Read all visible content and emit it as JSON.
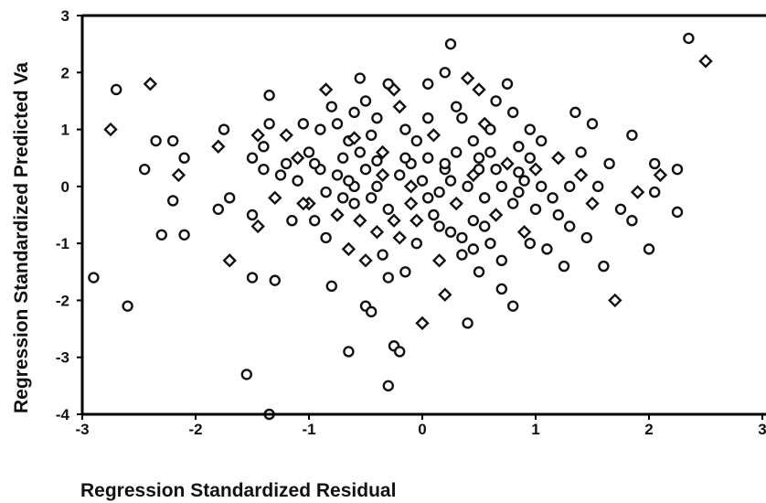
{
  "chart_data": {
    "type": "scatter",
    "title": "",
    "xlabel": "Regression Standardized Residual",
    "ylabel": "Regression Standardized Predicted Va",
    "xlim": [
      -3,
      3
    ],
    "ylim": [
      -4,
      3
    ],
    "x_ticks": [
      "-3",
      "-2",
      "-1",
      "0",
      "1",
      "2",
      "3"
    ],
    "y_ticks": [
      "3",
      "2",
      "1",
      "0",
      "-1",
      "-2",
      "-3",
      "-4"
    ],
    "grid": false,
    "colors": {
      "marker": "#111111",
      "axis": "#000000",
      "background": "#ffffff"
    },
    "series": [
      {
        "points": [
          [
            -2.9,
            -1.6
          ],
          [
            -2.75,
            1.0
          ],
          [
            -2.7,
            1.7
          ],
          [
            -2.6,
            -2.1
          ],
          [
            -2.45,
            0.3
          ],
          [
            -2.4,
            1.8
          ],
          [
            -2.35,
            0.8
          ],
          [
            -2.2,
            0.8
          ],
          [
            -2.2,
            -0.25
          ],
          [
            -2.15,
            0.2
          ],
          [
            -2.1,
            0.5
          ],
          [
            -2.1,
            -0.85
          ],
          [
            -2.3,
            -0.85
          ],
          [
            -1.8,
            0.7
          ],
          [
            -1.75,
            1.0
          ],
          [
            -1.7,
            -0.2
          ],
          [
            -1.8,
            -0.4
          ],
          [
            -1.7,
            -1.3
          ],
          [
            -1.55,
            -3.3
          ],
          [
            -1.5,
            -1.6
          ],
          [
            -1.5,
            0.5
          ],
          [
            -1.45,
            0.9
          ],
          [
            -1.4,
            0.7
          ],
          [
            -1.35,
            1.1
          ],
          [
            -1.35,
            1.6
          ],
          [
            -1.3,
            -0.2
          ],
          [
            -1.3,
            -1.65
          ],
          [
            -1.35,
            -4.0
          ],
          [
            -1.5,
            -0.5
          ],
          [
            -1.45,
            -0.7
          ],
          [
            -1.25,
            0.2
          ],
          [
            -1.2,
            0.4
          ],
          [
            -1.15,
            -0.6
          ],
          [
            -1.1,
            0.5
          ],
          [
            -1.1,
            0.1
          ],
          [
            -1.05,
            1.1
          ],
          [
            -1.0,
            0.6
          ],
          [
            -1.0,
            -0.3
          ],
          [
            -0.95,
            -0.6
          ],
          [
            -0.9,
            0.3
          ],
          [
            -0.9,
            1.0
          ],
          [
            -0.85,
            1.7
          ],
          [
            -0.8,
            1.4
          ],
          [
            -0.8,
            -1.75
          ],
          [
            -0.75,
            0.2
          ],
          [
            -0.75,
            -0.5
          ],
          [
            -0.7,
            0.5
          ],
          [
            -0.7,
            -0.2
          ],
          [
            -0.65,
            0.8
          ],
          [
            -0.65,
            -1.1
          ],
          [
            -0.65,
            -2.9
          ],
          [
            -0.6,
            1.3
          ],
          [
            -0.6,
            0.0
          ],
          [
            -0.55,
            -0.6
          ],
          [
            -0.55,
            1.9
          ],
          [
            -0.5,
            1.5
          ],
          [
            -0.5,
            0.3
          ],
          [
            -0.5,
            -1.3
          ],
          [
            -0.5,
            -2.1
          ],
          [
            -0.45,
            -2.2
          ],
          [
            -0.45,
            0.9
          ],
          [
            -0.4,
            -0.8
          ],
          [
            -0.4,
            0.0
          ],
          [
            -0.4,
            1.2
          ],
          [
            -0.35,
            -1.2
          ],
          [
            -0.35,
            0.6
          ],
          [
            -0.3,
            1.8
          ],
          [
            -0.3,
            -0.4
          ],
          [
            -0.3,
            -3.5
          ],
          [
            -0.25,
            1.7
          ],
          [
            -0.25,
            -2.8
          ],
          [
            -0.2,
            -2.9
          ],
          [
            -0.2,
            0.2
          ],
          [
            -0.2,
            -0.9
          ],
          [
            -0.15,
            1.0
          ],
          [
            -0.15,
            -1.5
          ],
          [
            -0.1,
            0.4
          ],
          [
            -0.1,
            -0.3
          ],
          [
            -0.05,
            0.8
          ],
          [
            -0.05,
            -1.0
          ],
          [
            0.0,
            0.1
          ],
          [
            0.0,
            -2.4
          ],
          [
            0.05,
            0.5
          ],
          [
            0.05,
            1.8
          ],
          [
            0.1,
            -0.5
          ],
          [
            0.1,
            0.9
          ],
          [
            0.15,
            -0.1
          ],
          [
            0.2,
            2.0
          ],
          [
            0.2,
            0.3
          ],
          [
            0.2,
            -1.9
          ],
          [
            0.25,
            -0.8
          ],
          [
            0.25,
            2.5
          ],
          [
            0.3,
            0.6
          ],
          [
            0.3,
            -0.3
          ],
          [
            0.35,
            1.2
          ],
          [
            0.35,
            -1.2
          ],
          [
            0.4,
            0.0
          ],
          [
            0.4,
            1.9
          ],
          [
            0.4,
            -2.4
          ],
          [
            0.45,
            0.8
          ],
          [
            0.45,
            -0.6
          ],
          [
            0.5,
            1.7
          ],
          [
            0.5,
            -1.5
          ],
          [
            0.5,
            0.3
          ],
          [
            0.55,
            -0.2
          ],
          [
            0.55,
            1.1
          ],
          [
            0.6,
            -1.0
          ],
          [
            0.6,
            0.6
          ],
          [
            0.65,
            1.5
          ],
          [
            0.65,
            -0.5
          ],
          [
            0.7,
            0.0
          ],
          [
            0.7,
            -1.8
          ],
          [
            0.75,
            1.8
          ],
          [
            0.75,
            0.4
          ],
          [
            0.8,
            -0.3
          ],
          [
            0.8,
            -2.1
          ],
          [
            0.85,
            0.7
          ],
          [
            0.9,
            -0.8
          ],
          [
            0.9,
            0.1
          ],
          [
            0.95,
            1.0
          ],
          [
            1.0,
            -0.4
          ],
          [
            1.0,
            0.3
          ],
          [
            1.05,
            0.8
          ],
          [
            1.1,
            -1.1
          ],
          [
            1.15,
            -0.2
          ],
          [
            1.2,
            0.5
          ],
          [
            1.25,
            -1.4
          ],
          [
            1.3,
            -0.7
          ],
          [
            1.35,
            1.3
          ],
          [
            1.4,
            0.2
          ],
          [
            1.4,
            0.6
          ],
          [
            1.45,
            -0.9
          ],
          [
            1.5,
            1.1
          ],
          [
            1.5,
            -0.3
          ],
          [
            1.55,
            0.0
          ],
          [
            1.6,
            -1.4
          ],
          [
            1.65,
            0.4
          ],
          [
            1.7,
            -2.0
          ],
          [
            1.75,
            -0.4
          ],
          [
            1.85,
            0.9
          ],
          [
            1.85,
            -0.6
          ],
          [
            1.9,
            -0.1
          ],
          [
            2.0,
            -1.1
          ],
          [
            2.05,
            0.4
          ],
          [
            2.05,
            -0.1
          ],
          [
            2.1,
            0.2
          ],
          [
            2.25,
            0.3
          ],
          [
            2.25,
            -0.45
          ],
          [
            2.35,
            2.6
          ],
          [
            2.5,
            2.2
          ],
          [
            -0.95,
            0.4
          ],
          [
            -0.85,
            -0.9
          ],
          [
            -0.6,
            -0.3
          ],
          [
            -0.35,
            0.2
          ],
          [
            -0.15,
            0.5
          ],
          [
            0.05,
            -0.2
          ],
          [
            0.25,
            0.1
          ],
          [
            0.45,
            0.2
          ],
          [
            0.65,
            0.3
          ],
          [
            0.85,
            -0.1
          ],
          [
            1.05,
            0.0
          ],
          [
            -0.05,
            -0.6
          ],
          [
            0.15,
            -0.7
          ],
          [
            0.35,
            -0.9
          ],
          [
            0.55,
            -0.7
          ],
          [
            -0.25,
            -0.6
          ],
          [
            -0.45,
            -0.2
          ],
          [
            -0.65,
            0.1
          ],
          [
            0.05,
            1.2
          ],
          [
            -0.2,
            1.4
          ],
          [
            0.6,
            1.0
          ],
          [
            0.8,
            1.3
          ],
          [
            -0.75,
            1.1
          ],
          [
            -1.2,
            0.9
          ],
          [
            0.3,
            1.4
          ],
          [
            -0.55,
            0.6
          ],
          [
            0.95,
            0.5
          ],
          [
            0.15,
            -1.3
          ],
          [
            -0.3,
            -1.6
          ],
          [
            0.7,
            -1.3
          ],
          [
            1.2,
            -0.5
          ],
          [
            -1.05,
            -0.3
          ],
          [
            -0.85,
            -0.1
          ],
          [
            0.45,
            -1.1
          ],
          [
            0.95,
            -1.0
          ],
          [
            -0.1,
            0.0
          ],
          [
            0.2,
            0.4
          ],
          [
            0.5,
            0.5
          ],
          [
            -0.4,
            0.45
          ],
          [
            -0.6,
            0.85
          ],
          [
            0.85,
            0.25
          ],
          [
            1.3,
            0.0
          ],
          [
            -1.4,
            0.3
          ]
        ]
      }
    ]
  }
}
